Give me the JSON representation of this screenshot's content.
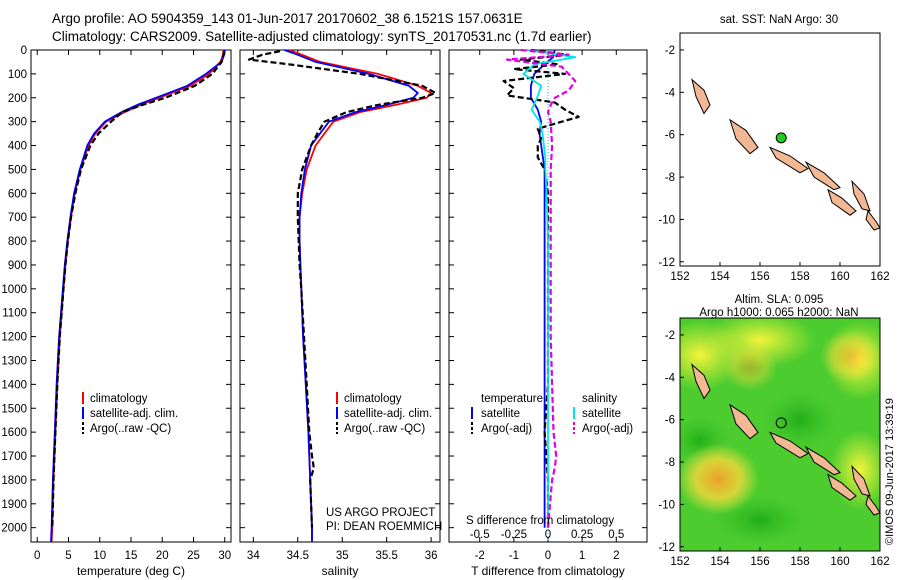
{
  "header": {
    "line1": "Argo profile: AO 5904359_143 01-Jun-2017 20170602_38 6.1521S 157.0631E",
    "line2": "Climatology: CARS2009. Satellite-adjusted climatology: synTS_20170531.nc (1.7d earlier)"
  },
  "side_stamp": "©IMOS 09-Jun-2017 13:39:19",
  "colors": {
    "climatology": "#ff0000",
    "satellite": "#0000ff",
    "argo": "#000000",
    "satellite_salinity": "#00e5e5",
    "argo_salinity": "#e000e0",
    "land": "#f2b893",
    "sst_marker": "#22cc22"
  },
  "chart_data": [
    {
      "type": "line",
      "id": "temperature",
      "xlabel": "temperature (deg C)",
      "ylabel": "",
      "xlim": [
        -1,
        31
      ],
      "ylim": [
        2060,
        0
      ],
      "xticks": [
        0,
        5,
        10,
        15,
        20,
        25,
        30
      ],
      "yticks": [
        0,
        100,
        200,
        300,
        400,
        500,
        600,
        700,
        800,
        900,
        1000,
        1100,
        1200,
        1300,
        1400,
        1500,
        1600,
        1700,
        1800,
        1900,
        2000
      ],
      "legend": [
        "climatology",
        "satellite-adj. clim.",
        "Argo(..raw -QC)"
      ],
      "series": [
        {
          "name": "climatology",
          "color": "#ff0000",
          "dash": false,
          "depth": [
            0,
            20,
            50,
            100,
            150,
            200,
            230,
            260,
            300,
            350,
            400,
            500,
            600,
            700,
            800,
            900,
            1000,
            1200,
            1400,
            1600,
            1800,
            2000,
            2060
          ],
          "values": [
            29.8,
            29.7,
            29.3,
            27.5,
            24.5,
            19.5,
            16.5,
            14.0,
            11.0,
            9.3,
            8.2,
            6.9,
            6.0,
            5.4,
            4.9,
            4.5,
            4.2,
            3.6,
            3.2,
            2.9,
            2.6,
            2.4,
            2.3
          ]
        },
        {
          "name": "satellite-adj. clim.",
          "color": "#0000ff",
          "dash": false,
          "depth": [
            0,
            20,
            50,
            100,
            150,
            200,
            230,
            260,
            300,
            350,
            400,
            500,
            600,
            700,
            800,
            900,
            1000,
            1200,
            1400,
            1600,
            1800,
            2000,
            2060
          ],
          "values": [
            30.0,
            29.9,
            29.5,
            27.0,
            24.0,
            19.0,
            16.0,
            13.5,
            10.8,
            9.1,
            8.0,
            6.8,
            5.9,
            5.3,
            4.8,
            4.4,
            4.1,
            3.5,
            3.1,
            2.8,
            2.5,
            2.3,
            2.2
          ]
        },
        {
          "name": "Argo(..raw -QC)",
          "color": "#000000",
          "dash": true,
          "depth": [
            5,
            20,
            50,
            100,
            150,
            200,
            230,
            260,
            300,
            350,
            400,
            500,
            600,
            700,
            800,
            900,
            1000,
            1200,
            1400,
            1600,
            1800,
            2000
          ],
          "values": [
            29.9,
            29.8,
            29.5,
            28.0,
            25.2,
            20.5,
            16.8,
            13.6,
            11.8,
            9.8,
            8.5,
            7.0,
            6.1,
            5.4,
            4.9,
            4.5,
            4.2,
            3.6,
            3.2,
            2.9,
            2.6,
            2.4
          ]
        }
      ]
    },
    {
      "type": "line",
      "id": "salinity",
      "xlabel": "salinity",
      "ylabel": "",
      "xlim": [
        33.85,
        36.1
      ],
      "ylim": [
        2060,
        0
      ],
      "xticks": [
        34,
        34.5,
        35,
        35.5,
        36
      ],
      "legend": [
        "climatology",
        "satellite-adj. clim.",
        "Argo(..raw -QC)"
      ],
      "annotation": [
        "US ARGO PROJECT",
        "PI: DEAN ROEMMICH"
      ],
      "series": [
        {
          "name": "climatology",
          "color": "#ff0000",
          "dash": false,
          "depth": [
            0,
            20,
            50,
            100,
            150,
            180,
            200,
            230,
            260,
            300,
            350,
            400,
            500,
            600,
            700,
            800,
            900,
            1000,
            1200,
            1400,
            1600,
            1800,
            2000,
            2060
          ],
          "values": [
            34.4,
            34.55,
            34.75,
            35.4,
            35.85,
            36.0,
            35.95,
            35.6,
            35.2,
            34.9,
            34.8,
            34.7,
            34.6,
            34.55,
            34.52,
            34.52,
            34.53,
            34.54,
            34.56,
            34.59,
            34.62,
            34.64,
            34.66,
            34.66
          ]
        },
        {
          "name": "satellite-adj. clim.",
          "color": "#0000ff",
          "dash": false,
          "depth": [
            0,
            20,
            50,
            100,
            150,
            180,
            200,
            230,
            260,
            300,
            350,
            400,
            500,
            600,
            700,
            800,
            900,
            1000,
            1200,
            1400,
            1600,
            1800,
            2000,
            2060
          ],
          "values": [
            34.35,
            34.5,
            34.7,
            35.3,
            35.75,
            35.85,
            35.8,
            35.5,
            35.15,
            34.85,
            34.75,
            34.65,
            34.58,
            34.54,
            34.52,
            34.52,
            34.53,
            34.54,
            34.56,
            34.59,
            34.62,
            34.64,
            34.66,
            34.66
          ]
        },
        {
          "name": "Argo(..raw -QC)",
          "color": "#000000",
          "dash": true,
          "depth": [
            5,
            20,
            40,
            60,
            100,
            150,
            180,
            200,
            230,
            260,
            300,
            350,
            400,
            500,
            600,
            700,
            800,
            900,
            1000,
            1200,
            1400,
            1600,
            1700,
            1750,
            1800,
            2000
          ],
          "values": [
            34.3,
            34.1,
            33.95,
            34.4,
            35.2,
            35.9,
            36.05,
            35.9,
            35.4,
            35.05,
            34.8,
            34.72,
            34.65,
            34.55,
            34.5,
            34.5,
            34.51,
            34.52,
            34.54,
            34.57,
            34.6,
            34.63,
            34.66,
            34.68,
            34.64,
            34.66
          ]
        }
      ]
    },
    {
      "type": "line",
      "id": "difference",
      "xlabel": "T difference from climatology",
      "xlabel_top": "S difference from climatology",
      "xlim": [
        -2.9,
        2.9
      ],
      "ylim": [
        2060,
        0
      ],
      "xticks": [
        -2,
        -1,
        0,
        1,
        2
      ],
      "xticks_top": [
        -0.5,
        -0.25,
        0,
        0.25,
        0.5
      ],
      "xlim_top": [
        -0.725,
        0.725
      ],
      "legend_headers": [
        "temperature",
        "salinity"
      ],
      "legend": [
        "satellite",
        "Argo(-adj)",
        "satellite",
        "Argo(-adj)"
      ],
      "series": [
        {
          "name": "T satellite",
          "color": "#0000ff",
          "dash": false,
          "axis": "bottom",
          "depth": [
            0,
            30,
            60,
            100,
            150,
            200,
            250,
            300,
            350,
            400,
            450,
            500,
            600,
            700,
            800,
            1000,
            1200,
            1400,
            1600,
            1800,
            2000
          ],
          "values": [
            0.2,
            0.15,
            -0.1,
            -0.4,
            -0.5,
            -0.5,
            -0.3,
            -0.2,
            -0.25,
            -0.2,
            -0.15,
            -0.1,
            -0.1,
            -0.1,
            -0.1,
            -0.1,
            -0.1,
            -0.1,
            -0.1,
            -0.1,
            -0.1
          ]
        },
        {
          "name": "T Argo(-adj)",
          "color": "#000000",
          "dash": true,
          "axis": "bottom",
          "depth": [
            0,
            20,
            40,
            60,
            80,
            100,
            130,
            160,
            190,
            220,
            250,
            280,
            300,
            330,
            370,
            400,
            450,
            500,
            550,
            600,
            700,
            800,
            1000,
            1200,
            1400,
            1600,
            1800,
            2000
          ],
          "values": [
            -0.5,
            0.6,
            -0.8,
            0.3,
            -1.0,
            0.5,
            -1.3,
            -1.0,
            -1.2,
            0.2,
            0.5,
            0.9,
            0.4,
            -0.3,
            -0.2,
            -0.3,
            -0.3,
            -0.1,
            -0.05,
            0.0,
            0.0,
            0.0,
            0.0,
            0.0,
            0.0,
            -0.1,
            0.0,
            0.0
          ]
        },
        {
          "name": "S satellite",
          "color": "#00e5e5",
          "dash": false,
          "axis": "top",
          "depth": [
            0,
            30,
            60,
            100,
            150,
            200,
            250,
            300,
            350,
            400,
            450,
            500,
            600,
            800,
            1000,
            1400,
            1800,
            2000
          ],
          "values": [
            -0.15,
            0.2,
            -0.1,
            -0.18,
            -0.05,
            -0.08,
            -0.12,
            -0.06,
            -0.04,
            -0.03,
            -0.02,
            -0.02,
            -0.01,
            0.0,
            0.0,
            0.0,
            0.0,
            0.0
          ]
        },
        {
          "name": "S Argo(-adj)",
          "color": "#e000e0",
          "dash": true,
          "axis": "top",
          "depth": [
            0,
            20,
            40,
            70,
            100,
            130,
            170,
            200,
            230,
            260,
            300,
            400,
            500,
            600,
            800,
            1000,
            1200,
            1400,
            1600,
            1700,
            1750,
            1800,
            2000
          ],
          "values": [
            -0.2,
            0.15,
            -0.3,
            0.1,
            0.15,
            0.2,
            0.15,
            0.05,
            0.02,
            0.0,
            0.02,
            0.03,
            0.02,
            0.02,
            0.02,
            0.02,
            0.02,
            0.03,
            0.04,
            0.06,
            0.05,
            0.03,
            0.0
          ]
        }
      ]
    },
    {
      "type": "map",
      "id": "sst_map",
      "title": "sat. SST: NaN Argo: 30",
      "xlim": [
        152,
        162
      ],
      "ylim": [
        -12.2,
        -1.2
      ],
      "xticks": [
        152,
        154,
        156,
        158,
        160,
        162
      ],
      "yticks": [
        -2,
        -4,
        -6,
        -8,
        -10,
        -12
      ],
      "marker": {
        "lon": 157.06,
        "lat": -6.15
      }
    },
    {
      "type": "heatmap",
      "id": "sla_map",
      "title_lines": [
        "Altim. SLA: 0.095",
        "Argo h1000: 0.065 h2000: NaN"
      ],
      "xlim": [
        152,
        162
      ],
      "ylim": [
        -12.2,
        -1.2
      ],
      "xticks": [
        152,
        154,
        156,
        158,
        160,
        162
      ],
      "yticks": [
        -2,
        -4,
        -6,
        -8,
        -10,
        -12
      ],
      "marker": {
        "lon": 157.06,
        "lat": -6.15
      },
      "hotspots": [
        {
          "lon": 153.9,
          "lat": -8.8,
          "level": 0.9
        },
        {
          "lon": 160.5,
          "lat": -3.0,
          "level": 0.55
        },
        {
          "lon": 155.5,
          "lat": -3.5,
          "level": 0.45
        }
      ]
    }
  ]
}
